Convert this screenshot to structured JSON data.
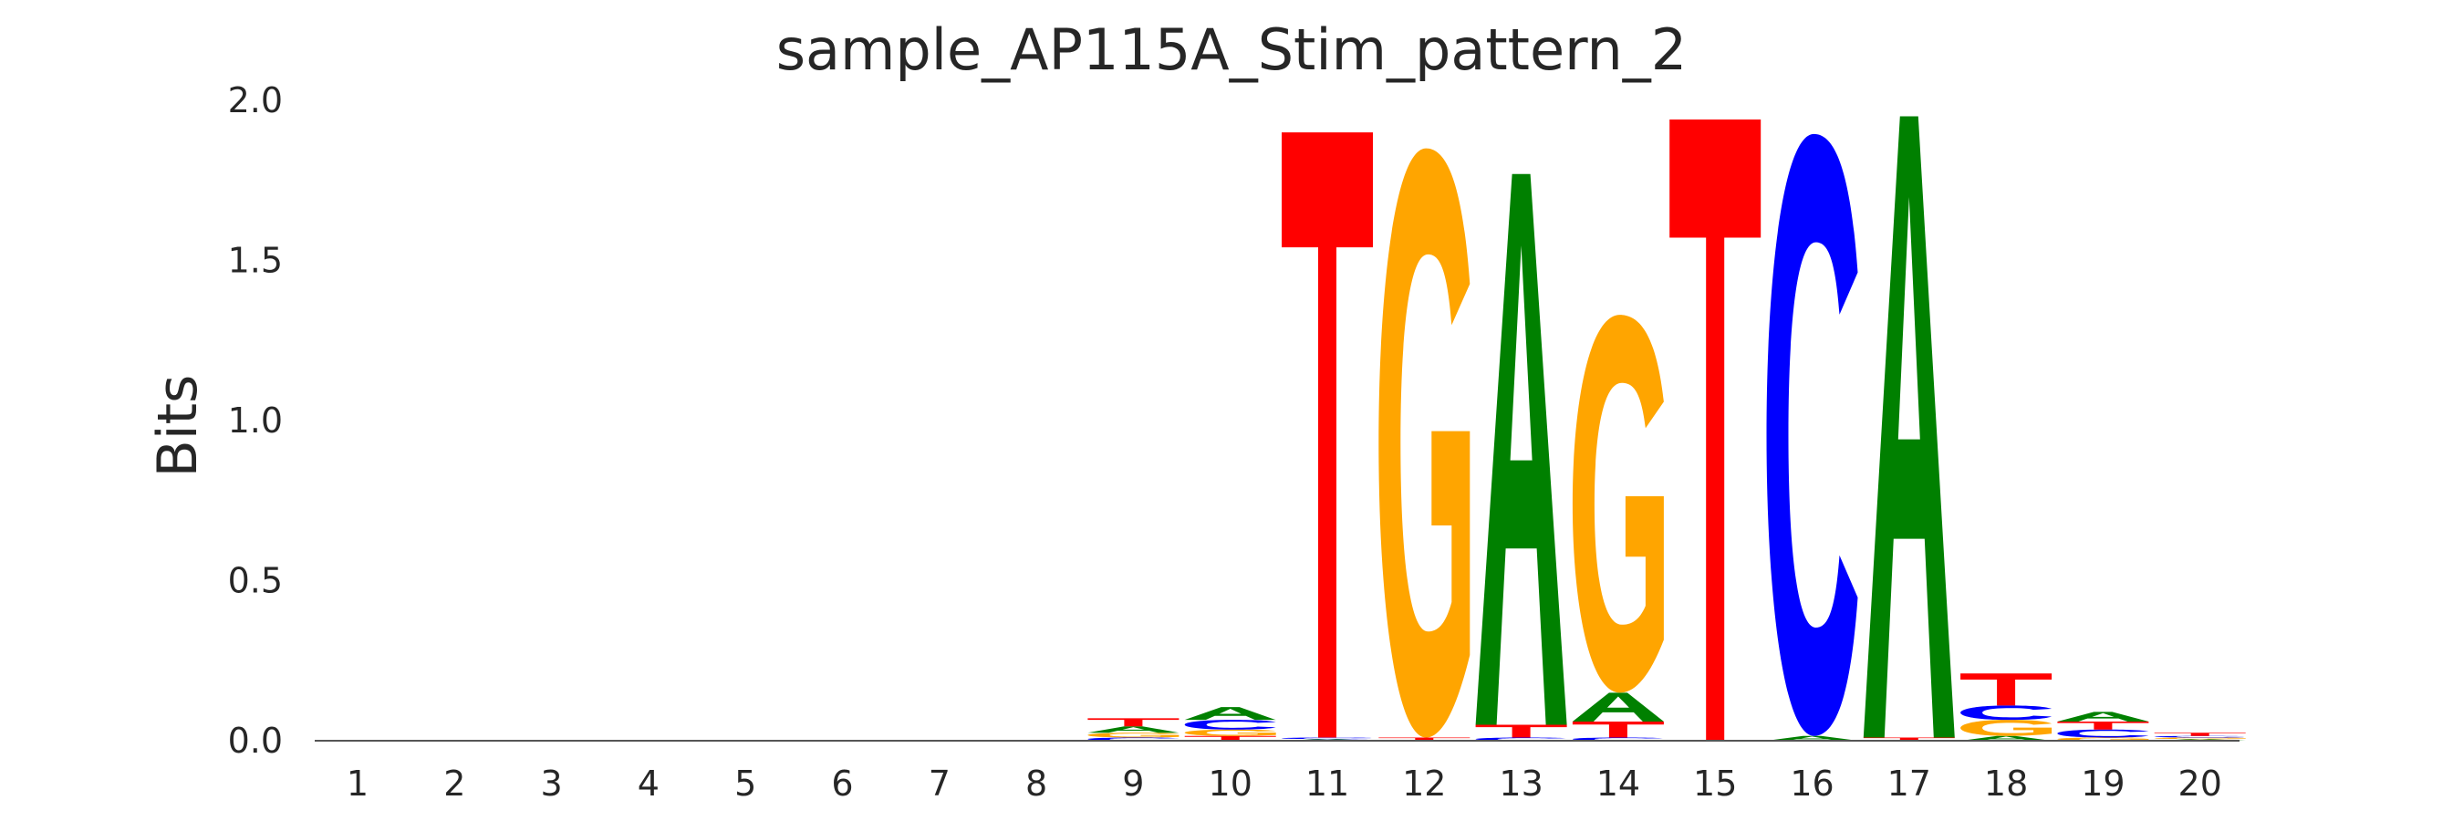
{
  "chart_data": {
    "type": "sequence-logo",
    "title": "sample_AP115A_Stim_pattern_2",
    "xlabel": "",
    "ylabel": "Bits",
    "ylim": [
      0,
      2.0
    ],
    "yticks": [
      "0.0",
      "0.5",
      "1.0",
      "1.5",
      "2.0"
    ],
    "positions": [
      "1",
      "2",
      "3",
      "4",
      "5",
      "6",
      "7",
      "8",
      "9",
      "10",
      "11",
      "12",
      "13",
      "14",
      "15",
      "16",
      "17",
      "18",
      "19",
      "20"
    ],
    "colors": {
      "A": "#008000",
      "C": "#0000ff",
      "G": "#ffa500",
      "T": "#ff0000"
    },
    "grid": false,
    "columns": [
      [],
      [],
      [],
      [],
      [],
      [],
      [],
      [],
      [
        [
          "C",
          0.01
        ],
        [
          "G",
          0.015
        ],
        [
          "A",
          0.02
        ],
        [
          "T",
          0.025
        ]
      ],
      [
        [
          "T",
          0.015
        ],
        [
          "G",
          0.02
        ],
        [
          "C",
          0.03
        ],
        [
          "A",
          0.04
        ]
      ],
      [
        [
          "A",
          0.005
        ],
        [
          "C",
          0.005
        ],
        [
          "T",
          1.89
        ]
      ],
      [
        [
          "T",
          0.01
        ],
        [
          "G",
          1.84
        ]
      ],
      [
        [
          "C",
          0.01
        ],
        [
          "T",
          0.04
        ],
        [
          "A",
          1.72
        ]
      ],
      [
        [
          "C",
          0.01
        ],
        [
          "T",
          0.05
        ],
        [
          "A",
          0.09
        ],
        [
          "G",
          1.18
        ]
      ],
      [
        [
          "T",
          1.94
        ]
      ],
      [
        [
          "A",
          0.015
        ],
        [
          "C",
          1.88
        ]
      ],
      [
        [
          "T",
          0.01
        ],
        [
          "A",
          1.94
        ]
      ],
      [
        [
          "A",
          0.015
        ],
        [
          "G",
          0.05
        ],
        [
          "C",
          0.045
        ],
        [
          "T",
          0.1
        ]
      ],
      [
        [
          "G",
          0.01
        ],
        [
          "C",
          0.025
        ],
        [
          "T",
          0.025
        ],
        [
          "A",
          0.03
        ]
      ],
      [
        [
          "A",
          0.005
        ],
        [
          "G",
          0.005
        ],
        [
          "C",
          0.005
        ],
        [
          "T",
          0.01
        ]
      ]
    ]
  }
}
